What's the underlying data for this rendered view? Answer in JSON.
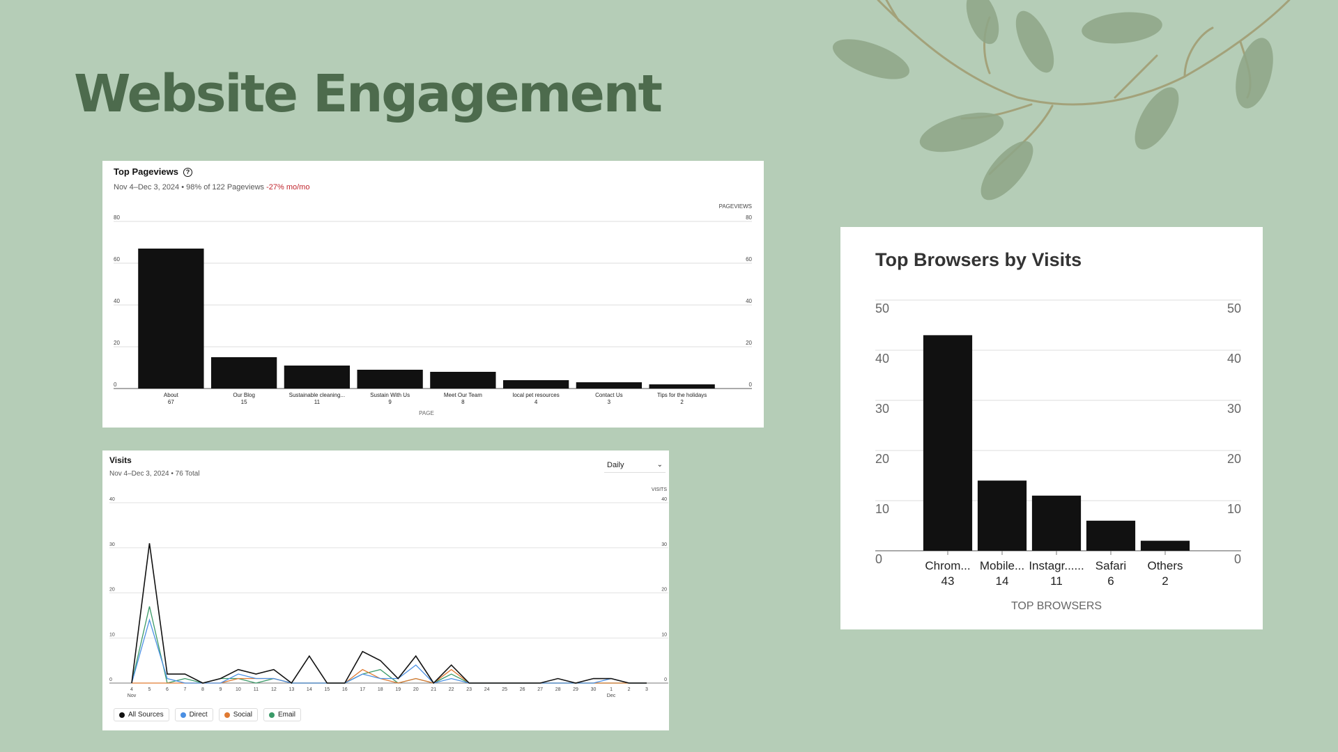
{
  "page": {
    "title": "Website Engagement"
  },
  "pageviews_card": {
    "title": "Top Pageviews",
    "help_icon": "?",
    "subtitle_prefix": "Nov 4–Dec 3, 2024 • 98% of 122 Pageviews ",
    "change": "-27% mo/mo",
    "change_color": "#c0262e"
  },
  "visits_card": {
    "title": "Visits",
    "subtitle": "Nov 4–Dec 3, 2024 • 76 Total",
    "interval": {
      "selected": "Daily",
      "chevron": "⌄"
    },
    "legend": [
      {
        "label": "All Sources",
        "color": "#111111"
      },
      {
        "label": "Direct",
        "color": "#4a8fe3"
      },
      {
        "label": "Social",
        "color": "#e07a32"
      },
      {
        "label": "Email",
        "color": "#3a9a68"
      }
    ]
  },
  "browsers_card": {
    "title": "Top Browsers by Visits"
  },
  "chart_data": [
    {
      "type": "bar",
      "categories": [
        "About",
        "Our Blog",
        "Sustainable cleaning...",
        "Sustain With Us",
        "Meet Our Team",
        "local pet resources",
        "Contact Us",
        "Tips for the holidays"
      ],
      "values": [
        67,
        15,
        11,
        9,
        8,
        4,
        3,
        2
      ],
      "title": "Top Pageviews",
      "xlabel": "PAGE",
      "ylabel": "PAGEVIEWS",
      "ylim": [
        0,
        80
      ],
      "yticks": [
        0,
        20,
        40,
        60,
        80
      ],
      "grid": true,
      "bar_color": "#111111"
    },
    {
      "type": "line",
      "title": "Visits",
      "ylabel": "VISITS",
      "ylim": [
        0,
        40
      ],
      "yticks": [
        0,
        10,
        20,
        30,
        40
      ],
      "x": [
        "4",
        "5",
        "6",
        "7",
        "8",
        "9",
        "10",
        "11",
        "12",
        "13",
        "14",
        "15",
        "16",
        "17",
        "18",
        "19",
        "20",
        "21",
        "22",
        "23",
        "24",
        "25",
        "26",
        "27",
        "28",
        "29",
        "30",
        "1",
        "2",
        "3"
      ],
      "x_month_labels": {
        "0": "Nov",
        "27": "Dec"
      },
      "series": [
        {
          "name": "All Sources",
          "color": "#111111",
          "values": [
            0,
            31,
            2,
            2,
            0,
            1,
            3,
            2,
            3,
            0,
            6,
            0,
            0,
            7,
            5,
            1,
            6,
            0,
            4,
            0,
            0,
            0,
            0,
            0,
            1,
            0,
            1,
            1,
            0,
            0
          ]
        },
        {
          "name": "Direct",
          "color": "#4a8fe3",
          "values": [
            0,
            14,
            1,
            0,
            0,
            0,
            2,
            1,
            1,
            0,
            0,
            0,
            0,
            2,
            1,
            1,
            4,
            0,
            1,
            0,
            0,
            0,
            0,
            0,
            0,
            0,
            0,
            1,
            0,
            0
          ]
        },
        {
          "name": "Social",
          "color": "#e07a32",
          "values": [
            0,
            0,
            0,
            0,
            0,
            0,
            1,
            1,
            1,
            0,
            0,
            0,
            0,
            3,
            1,
            0,
            1,
            0,
            3,
            0,
            0,
            0,
            0,
            0,
            0,
            0,
            0,
            0,
            0,
            0
          ]
        },
        {
          "name": "Email",
          "color": "#3a9a68",
          "values": [
            0,
            17,
            0,
            1,
            0,
            1,
            1,
            0,
            1,
            0,
            0,
            0,
            0,
            2,
            3,
            0,
            1,
            0,
            2,
            0,
            0,
            0,
            0,
            0,
            0,
            0,
            0,
            0,
            0,
            0
          ]
        }
      ]
    },
    {
      "type": "bar",
      "categories": [
        "Chrom...",
        "Mobile...",
        "Instagr......",
        "Safari",
        "Others"
      ],
      "values": [
        43,
        14,
        11,
        6,
        2
      ],
      "title": "Top Browsers by Visits",
      "xlabel": "TOP BROWSERS",
      "ylim": [
        0,
        50
      ],
      "yticks": [
        0,
        10,
        20,
        30,
        40,
        50
      ],
      "grid": true,
      "bar_color": "#111111"
    }
  ]
}
